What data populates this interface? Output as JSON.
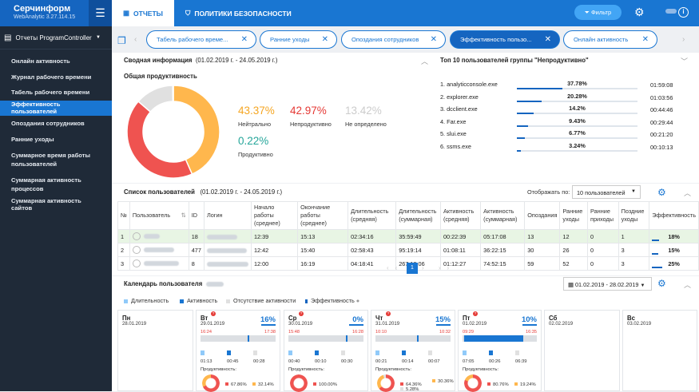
{
  "app": {
    "name": "Серчинформ",
    "version": "WebAnalytic 3.27.114.15"
  },
  "sidebar": {
    "header": "Отчеты ProgramController",
    "items": [
      {
        "label": "Онлайн активность"
      },
      {
        "label": "Журнал рабочего времени"
      },
      {
        "label": "Табель рабочего времени"
      },
      {
        "label": "Эффективность пользователей",
        "active": true
      },
      {
        "label": "Опоздания сотрудников"
      },
      {
        "label": "Ранние уходы"
      },
      {
        "label": "Суммарное время работы пользователей"
      },
      {
        "label": "Суммарная активность процессов"
      },
      {
        "label": "Суммарная активность сайтов"
      }
    ]
  },
  "topnav": {
    "reports": "ОТЧЕТЫ",
    "policies": "ПОЛИТИКИ БЕЗОПАСНОСТИ",
    "filter": "Фильтр"
  },
  "tabs": [
    {
      "label": "Табель рабочего време..."
    },
    {
      "label": "Ранние уходы"
    },
    {
      "label": "Опоздания сотрудников"
    },
    {
      "label": "Эффективность пользо...",
      "active": true
    },
    {
      "label": "Онлайн активность"
    }
  ],
  "summary": {
    "title": "Сводная информация",
    "period": "(01.02.2019 г. - 24.05.2019 г.)",
    "subtitle": "Общая продуктивность",
    "neutral_pct": "43.37%",
    "neutral_label": "Нейтрально",
    "unprod_pct": "42.97%",
    "unprod_label": "Непродуктивно",
    "undef_pct": "13.42%",
    "undef_label": "Не определено",
    "prod_pct": "0.22%",
    "prod_label": "Продуктивно",
    "donut": [
      {
        "value": 43.37,
        "color": "#ffb74d"
      },
      {
        "value": 42.97,
        "color": "#ef5350"
      },
      {
        "value": 13.42,
        "color": "#e0e0e0"
      },
      {
        "value": 0.22,
        "color": "#26a69a"
      }
    ]
  },
  "top10": {
    "title": "Топ 10 пользователей группы \"Непродуктивно\"",
    "items": [
      {
        "name": "1. analyticconsole.exe",
        "pct": "37.78%",
        "value": 37.78,
        "time": "01:59:08"
      },
      {
        "name": "2. explorer.exe",
        "pct": "20.28%",
        "value": 20.28,
        "time": "01:03:56"
      },
      {
        "name": "3. dcclient.exe",
        "pct": "14.2%",
        "value": 14.2,
        "time": "00:44:46"
      },
      {
        "name": "4. Far.exe",
        "pct": "9.43%",
        "value": 9.43,
        "time": "00:29:44"
      },
      {
        "name": "5. slui.exe",
        "pct": "6.77%",
        "value": 6.77,
        "time": "00:21:20"
      },
      {
        "name": "6. ssms.exe",
        "pct": "3.24%",
        "value": 3.24,
        "time": "00:10:13"
      }
    ]
  },
  "userlist": {
    "title": "Список пользователей",
    "period": "(01.02.2019 г. - 24.05.2019 г.)",
    "show_label": "Отображать по:",
    "show_value": "10 пользователей",
    "columns": [
      "№",
      "Пользователь",
      "ID",
      "Логин",
      "Начало работы (среднее)",
      "Окончание работы (среднее)",
      "Длительность (средняя)",
      "Длительность (суммарная)",
      "Активность (средняя)",
      "Активность (суммарная)",
      "Опоздания",
      "Ранние уходы",
      "Ранние приходы",
      "Поздние уходы",
      "Эффективность"
    ],
    "rows": [
      {
        "n": "1",
        "id": "18",
        "start": "12:39",
        "end": "15:13",
        "dur_avg": "02:34:16",
        "dur_sum": "35:59:49",
        "act_avg": "00:22:39",
        "act_sum": "05:17:08",
        "late": "13",
        "early_leave": "12",
        "early_come": "0",
        "late_leave": "1",
        "eff": "18%",
        "eff_value": 18,
        "selected": true
      },
      {
        "n": "2",
        "id": "477",
        "start": "12:42",
        "end": "15:40",
        "dur_avg": "02:58:43",
        "dur_sum": "95:19:14",
        "act_avg": "01:08:11",
        "act_sum": "36:22:15",
        "late": "30",
        "early_leave": "26",
        "early_come": "0",
        "late_leave": "3",
        "eff": "15%",
        "eff_value": 15
      },
      {
        "n": "3",
        "id": "8",
        "start": "12:00",
        "end": "16:19",
        "dur_avg": "04:18:41",
        "dur_sum": "267:19:06",
        "act_avg": "01:12:27",
        "act_sum": "74:52:15",
        "late": "59",
        "early_leave": "52",
        "early_come": "0",
        "late_leave": "3",
        "eff": "25%",
        "eff_value": 25
      }
    ],
    "page": "1"
  },
  "calendar": {
    "title": "Календарь пользователя",
    "range": "01.02.2019 - 28.02.2019",
    "legend": [
      "Длительность",
      "Активность",
      "Отсутствие активности",
      "Эффективность"
    ],
    "productivity_label": "Продуктивность:",
    "days": [
      {
        "name": "Пн",
        "date": "28.01.2019"
      },
      {
        "name": "Вт",
        "date": "29.01.2019",
        "pct": "16%",
        "start": "16:24",
        "end": "17:38",
        "times": [
          "01:13",
          "00:45",
          "00:28"
        ],
        "p1": "67.86%",
        "p2": "32.14%"
      },
      {
        "name": "Ср",
        "date": "30.01.2019",
        "pct": "0%",
        "start": "15:48",
        "end": "16:28",
        "times": [
          "00:40",
          "00:10",
          "00:30"
        ],
        "p1": "100.00%"
      },
      {
        "name": "Чт",
        "date": "31.01.2019",
        "pct": "15%",
        "start": "10:10",
        "end": "10:32",
        "times": [
          "00:21",
          "00:14",
          "00:07"
        ],
        "p1": "64.36%",
        "p2": "30.36%",
        "p3": "5.28%"
      },
      {
        "name": "Пт",
        "date": "01.02.2019",
        "pct": "10%",
        "start": "09:29",
        "end": "16:35",
        "times": [
          "07:05",
          "00:26",
          "06:39"
        ],
        "p1": "80.76%",
        "p2": "19.24%"
      },
      {
        "name": "Сб",
        "date": "02.02.2019"
      },
      {
        "name": "Вс",
        "date": "03.02.2019"
      }
    ]
  },
  "colors": {
    "primary": "#1976d2",
    "sidebar": "#1f2a38",
    "neutral": "#f5a623",
    "unprod": "#e53935",
    "undef": "#cccccc",
    "prod": "#26a69a"
  }
}
